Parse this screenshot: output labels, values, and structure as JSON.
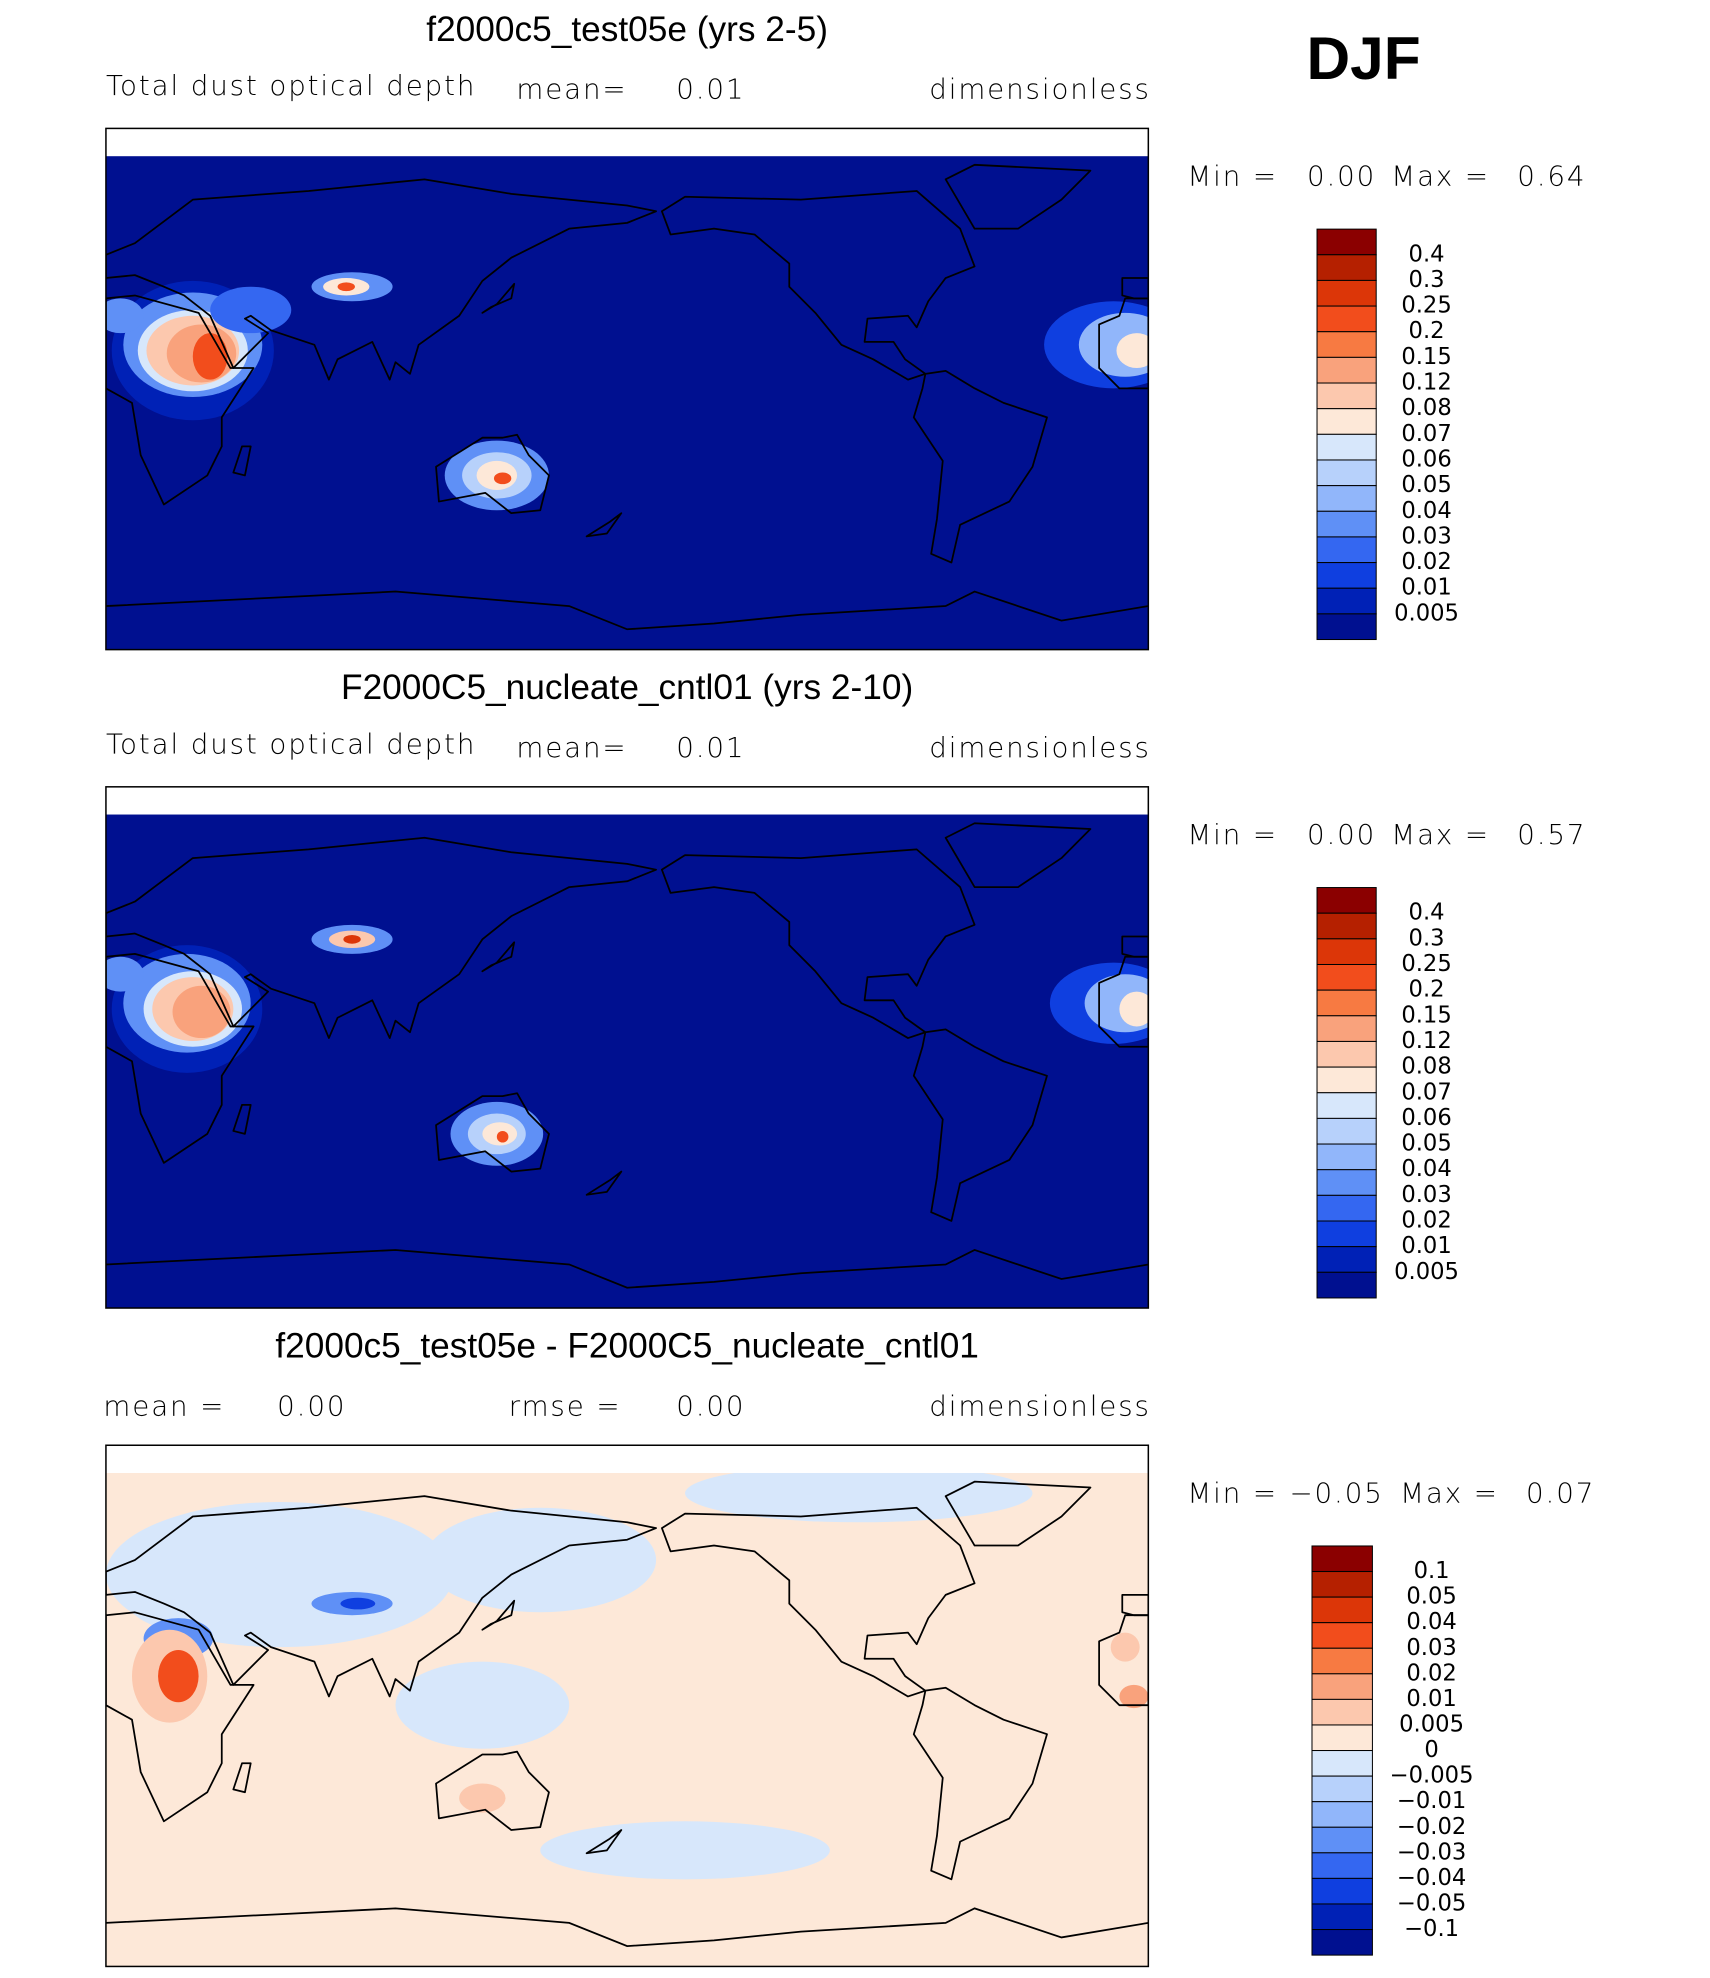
{
  "header": {
    "season": "DJF"
  },
  "panels": [
    {
      "title": "f2000c5_test05e (yrs 2-5)",
      "field": "Total dust optical depth",
      "mean_label": "mean=",
      "mean": "0.01",
      "units": "dimensionless",
      "min_label": "Min =",
      "min": "0.00",
      "max_label": "Max =",
      "max": "0.64",
      "colorbar": {
        "labels": [
          "0.4",
          "0.3",
          "0.25",
          "0.2",
          "0.15",
          "0.12",
          "0.08",
          "0.07",
          "0.06",
          "0.05",
          "0.04",
          "0.03",
          "0.02",
          "0.01",
          "0.005"
        ],
        "colors": [
          "#8b0000",
          "#b52000",
          "#dc3608",
          "#f24d1c",
          "#f77a42",
          "#f9a27c",
          "#fcc8ae",
          "#fde8d8",
          "#d7e7fb",
          "#b7d1fb",
          "#91b6fa",
          "#5f90f6",
          "#3467f1",
          "#0f3fe0",
          "#0021b6",
          "#001090"
        ]
      }
    },
    {
      "title": "F2000C5_nucleate_cntl01 (yrs 2-10)",
      "field": "Total dust optical depth",
      "mean_label": "mean=",
      "mean": "0.01",
      "units": "dimensionless",
      "min_label": "Min =",
      "min": "0.00",
      "max_label": "Max =",
      "max": "0.57",
      "colorbar": {
        "labels": [
          "0.4",
          "0.3",
          "0.25",
          "0.2",
          "0.15",
          "0.12",
          "0.08",
          "0.07",
          "0.06",
          "0.05",
          "0.04",
          "0.03",
          "0.02",
          "0.01",
          "0.005"
        ],
        "colors": [
          "#8b0000",
          "#b52000",
          "#dc3608",
          "#f24d1c",
          "#f77a42",
          "#f9a27c",
          "#fcc8ae",
          "#fde8d8",
          "#d7e7fb",
          "#b7d1fb",
          "#91b6fa",
          "#5f90f6",
          "#3467f1",
          "#0f3fe0",
          "#0021b6",
          "#001090"
        ]
      }
    },
    {
      "title": "f2000c5_test05e - F2000C5_nucleate_cntl01",
      "mean_label": "mean =",
      "mean": "0.00",
      "rmse_label": "rmse =",
      "rmse": "0.00",
      "units": "dimensionless",
      "min_label": "Min =",
      "min": "−0.05",
      "max_label": "Max =",
      "max": "0.07",
      "colorbar": {
        "labels": [
          "0.1",
          "0.05",
          "0.04",
          "0.03",
          "0.02",
          "0.01",
          "0.005",
          "0",
          "−0.005",
          "−0.01",
          "−0.02",
          "−0.03",
          "−0.04",
          "−0.05",
          "−0.1"
        ],
        "colors": [
          "#8b0000",
          "#b52000",
          "#dc3608",
          "#f24d1c",
          "#f77a42",
          "#f9a27c",
          "#fcc8ae",
          "#fde8d8",
          "#d7e7fb",
          "#b7d1fb",
          "#91b6fa",
          "#5f90f6",
          "#3467f1",
          "#0f3fe0",
          "#0021b6",
          "#001090"
        ]
      }
    }
  ]
}
